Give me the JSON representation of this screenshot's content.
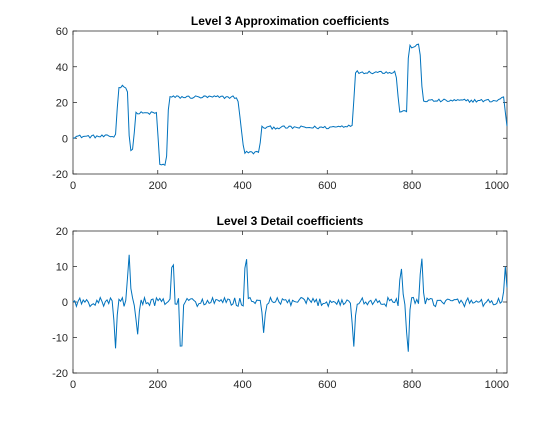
{
  "chart_data": [
    {
      "type": "line",
      "title": "Level 3 Approximation coefficients",
      "xlabel": "",
      "ylabel": "",
      "xlim": [
        0,
        1024
      ],
      "ylim": [
        -20,
        60
      ],
      "xticks": [
        0,
        200,
        400,
        600,
        800,
        1000
      ],
      "yticks": [
        -20,
        0,
        20,
        40,
        60
      ],
      "grid": false,
      "color": "#0072BD",
      "noise": 0.9,
      "segments": [
        [
          0,
          1
        ],
        [
          100,
          1
        ],
        [
          108,
          29
        ],
        [
          128,
          29
        ],
        [
          134,
          -7
        ],
        [
          143,
          -7
        ],
        [
          146,
          14
        ],
        [
          198,
          14
        ],
        [
          204,
          -15
        ],
        [
          220,
          -15
        ],
        [
          226,
          23
        ],
        [
          388,
          23
        ],
        [
          404,
          -8
        ],
        [
          440,
          -8
        ],
        [
          444,
          6
        ],
        [
          600,
          6
        ],
        [
          648,
          7
        ],
        [
          660,
          8
        ],
        [
          666,
          37
        ],
        [
          762,
          37
        ],
        [
          770,
          15
        ],
        [
          787,
          15
        ],
        [
          792,
          51
        ],
        [
          818,
          52
        ],
        [
          825,
          21
        ],
        [
          1000,
          21
        ],
        [
          1016,
          23
        ],
        [
          1024,
          7
        ]
      ]
    },
    {
      "type": "line",
      "title": "Level 3 Detail coefficients",
      "xlabel": "",
      "ylabel": "",
      "xlim": [
        0,
        1024
      ],
      "ylim": [
        -20,
        20
      ],
      "xticks": [
        0,
        200,
        400,
        600,
        800,
        1000
      ],
      "yticks": [
        -20,
        -10,
        0,
        10,
        20
      ],
      "grid": false,
      "color": "#0072BD",
      "noise": 1.3,
      "spikes": [
        [
          100,
          -14
        ],
        [
          132,
          14.5
        ],
        [
          152,
          -10
        ],
        [
          235,
          15
        ],
        [
          255,
          -19
        ],
        [
          408,
          16
        ],
        [
          450,
          -9
        ],
        [
          662,
          -14
        ],
        [
          774,
          11.5
        ],
        [
          790,
          -17
        ],
        [
          822,
          15
        ],
        [
          1020,
          10
        ]
      ]
    }
  ]
}
